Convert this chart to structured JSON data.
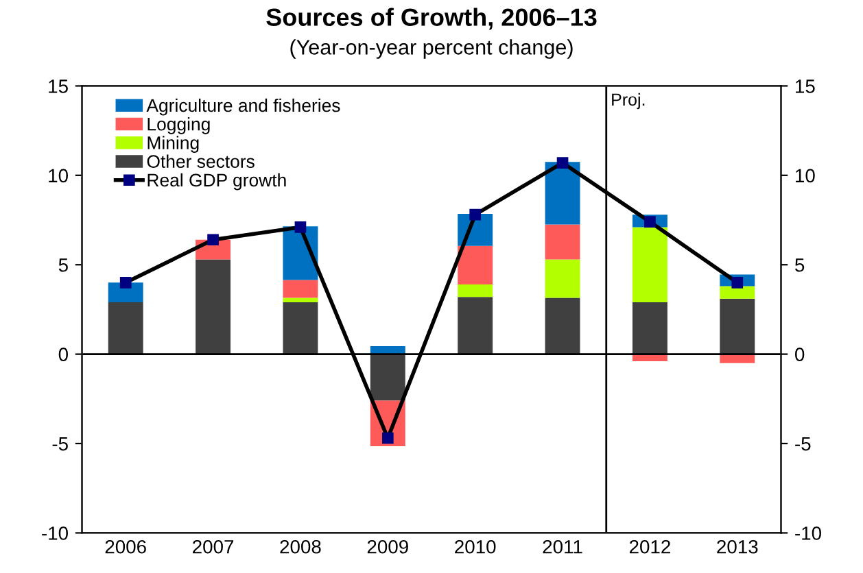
{
  "chart_data": {
    "type": "bar",
    "title": "Sources of Growth, 2006–13",
    "subtitle": "(Year-on-year percent change)",
    "categories": [
      "2006",
      "2007",
      "2008",
      "2009",
      "2010",
      "2011",
      "2012",
      "2013"
    ],
    "stacked": true,
    "series": [
      {
        "name": "Other sectors",
        "color": "#404040",
        "values": [
          2.9,
          5.3,
          2.9,
          -2.6,
          3.2,
          3.15,
          2.9,
          3.1
        ]
      },
      {
        "name": "Mining",
        "color": "#b3ff00",
        "values": [
          0,
          0,
          0.25,
          0,
          0.7,
          2.15,
          4.2,
          0.7
        ]
      },
      {
        "name": "Logging",
        "color": "#ff5a5a",
        "values": [
          0,
          1.1,
          1.0,
          -2.55,
          2.15,
          1.95,
          -0.4,
          -0.5
        ]
      },
      {
        "name": "Agriculture and fisheries",
        "color": "#0070c0",
        "values": [
          1.1,
          0,
          3.0,
          0.45,
          1.8,
          3.5,
          0.7,
          0.65
        ]
      },
      {
        "name": "Real GDP growth",
        "type": "line",
        "color": "#000000",
        "marker": "square",
        "values": [
          4.0,
          6.4,
          7.1,
          -4.7,
          7.8,
          10.7,
          7.4,
          4.0
        ]
      }
    ],
    "ylim": [
      -10,
      15
    ],
    "yticks": [
      -10,
      -5,
      0,
      5,
      10,
      15
    ],
    "y2lim": [
      -10,
      15
    ],
    "y2ticks": [
      -10,
      -5,
      0,
      5,
      10,
      15
    ],
    "ref_lines": [
      {
        "axis": "y",
        "value": 0,
        "color": "#000000"
      }
    ],
    "annotations": [
      "Proj."
    ],
    "legend": "top left",
    "grid": false
  }
}
